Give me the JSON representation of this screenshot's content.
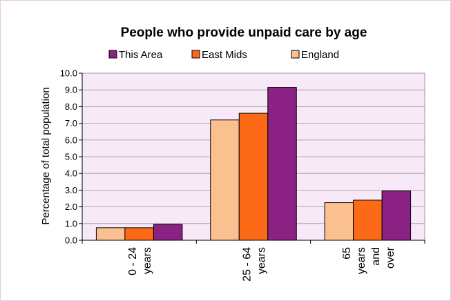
{
  "chart_data": {
    "type": "bar",
    "title": "People who provide unpaid care by age",
    "xlabel": "",
    "ylabel": "Percentage of total population",
    "ylim": [
      0,
      10
    ],
    "yticks": [
      "0.0",
      "1.0",
      "2.0",
      "3.0",
      "4.0",
      "5.0",
      "6.0",
      "7.0",
      "8.0",
      "9.0",
      "10.0"
    ],
    "categories": [
      [
        "0 - 24",
        "years"
      ],
      [
        "25 - 64",
        "years"
      ],
      [
        "65",
        "years",
        "and",
        "over"
      ]
    ],
    "series": [
      {
        "name": "England",
        "color": "#fac090",
        "values": [
          0.75,
          7.2,
          2.25
        ]
      },
      {
        "name": "East Mids",
        "color": "#fd6a17",
        "values": [
          0.75,
          7.6,
          2.4
        ]
      },
      {
        "name": "This Area",
        "color": "#8b2283",
        "values": [
          0.95,
          9.15,
          2.95
        ]
      }
    ],
    "legend": {
      "placement": "top",
      "order": [
        "This Area",
        "East Mids",
        "England"
      ]
    },
    "plot_background": "#f7e9f7",
    "grid": true
  }
}
